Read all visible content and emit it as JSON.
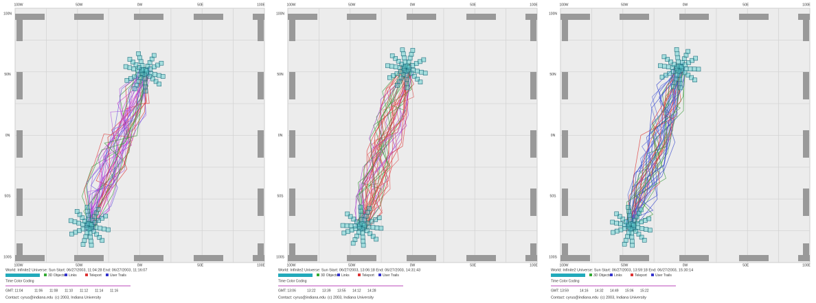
{
  "axis_labels": {
    "x": [
      "100W",
      "50W",
      "0W",
      "50E",
      "100E"
    ],
    "y": [
      "100N",
      "50N",
      "0N",
      "50S",
      "100S"
    ]
  },
  "legend": [
    "3D Objects",
    "Links",
    "Teleport",
    "User Trails"
  ],
  "time_color_coding": "Time Color Coding",
  "contact": "Contact: cyrus@indiana.edu",
  "copyright": "(c) 2003, Indiana University",
  "panels": [
    {
      "world": "World: Infinite2 Universe: Sun Start: 06/27/2003, 11:04:28 End: 06/27/2003, 11:16:07",
      "gmt": "GMT: 11:04",
      "times": [
        "11:06",
        "11:08",
        "11:10",
        "11:12",
        "11:14",
        "11:16"
      ]
    },
    {
      "world": "World: Infinite2 Universe: Sun Start: 06/27/2003, 13:06:18 End: 06/27/2003, 14:31:43",
      "gmt": "GMT: 13:06",
      "times": [
        "13:22",
        "13:39",
        "13:55",
        "14:12",
        "14:28"
      ]
    },
    {
      "world": "World: Infinite2 Universe: Sun Start: 06/27/2003, 13:59:18 End: 06/27/2003, 15:30:14",
      "gmt": "GMT: 13:59",
      "times": [
        "14:16",
        "14:32",
        "14:49",
        "15:06",
        "15:22"
      ]
    }
  ]
}
